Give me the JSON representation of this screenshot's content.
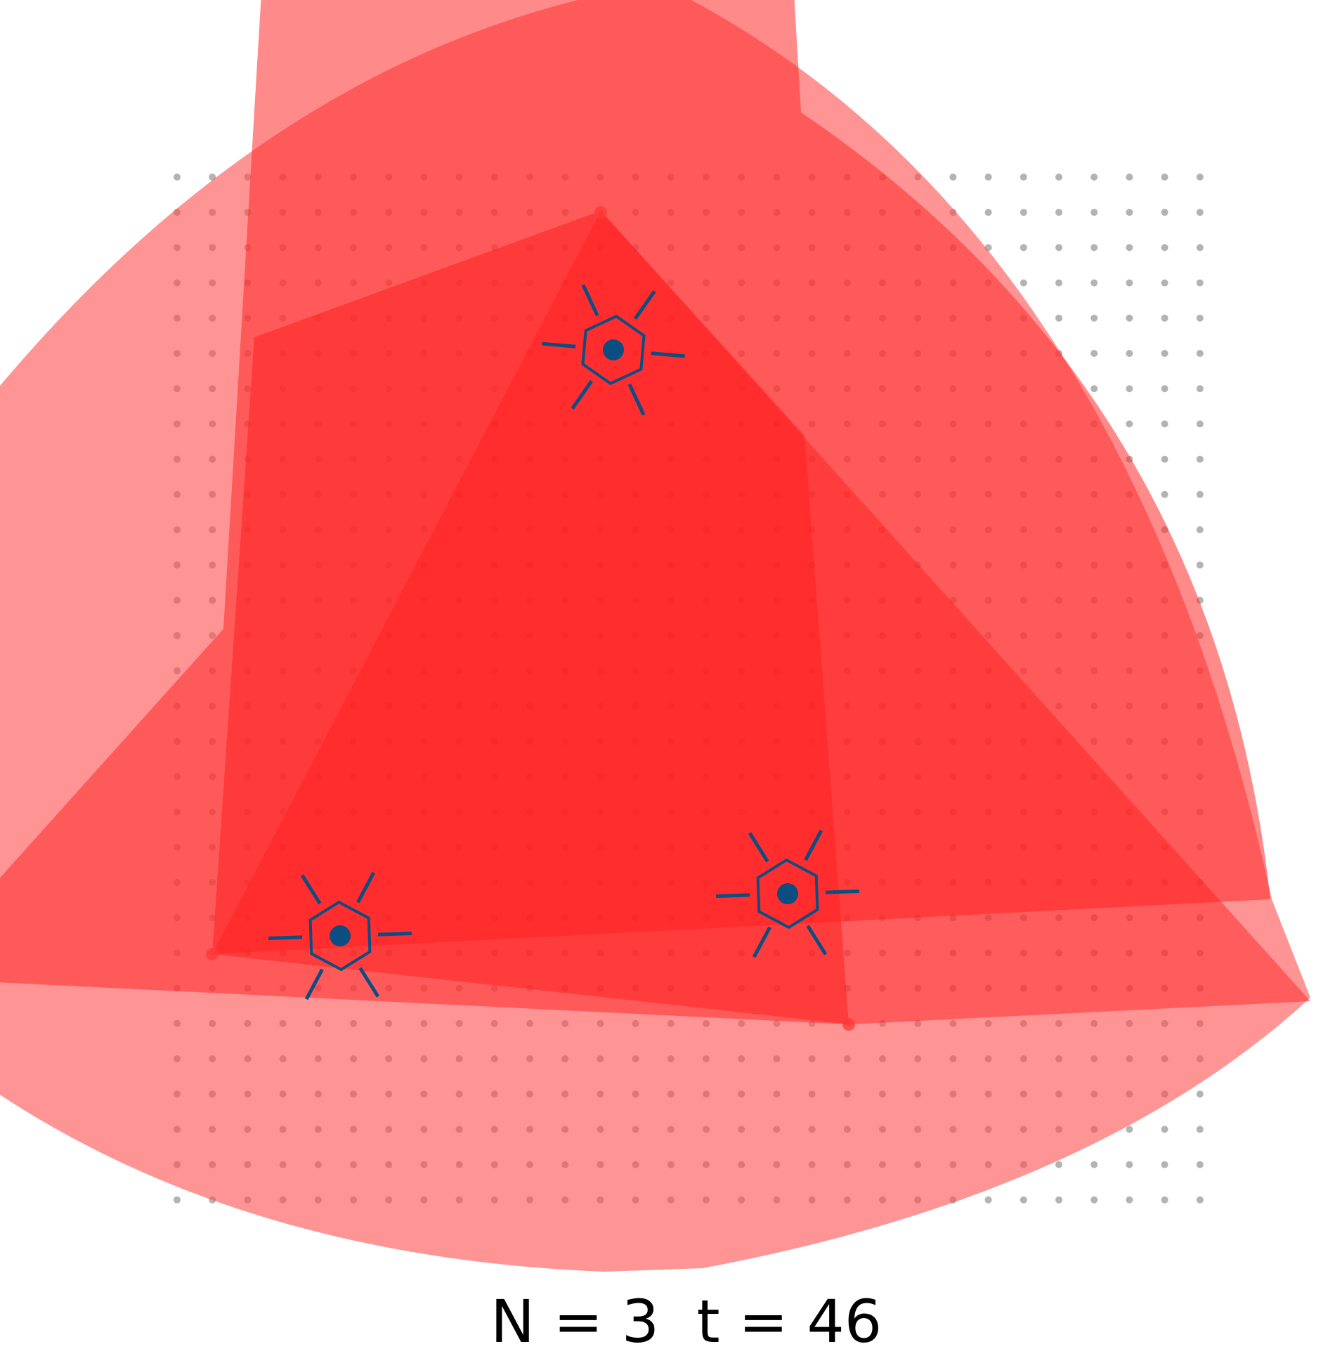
{
  "caption": {
    "n_text": "N = 3",
    "t_text": "t = 46"
  },
  "colors": {
    "background": "#ffffff",
    "grid_dot": "#b3b3b3",
    "outer_region": "#ff4d4d",
    "middle_region": "#ff2a2a",
    "inner_region": "#ff1a1a",
    "agent": "#0b4f82",
    "caption": "#000000"
  },
  "agents": [
    {
      "name": "agent-top",
      "icon": "hexagon-sensor-icon"
    },
    {
      "name": "agent-left",
      "icon": "hexagon-sensor-icon"
    },
    {
      "name": "agent-right",
      "icon": "hexagon-sensor-icon"
    }
  ],
  "grid": {
    "rows": 30,
    "cols": 30
  }
}
